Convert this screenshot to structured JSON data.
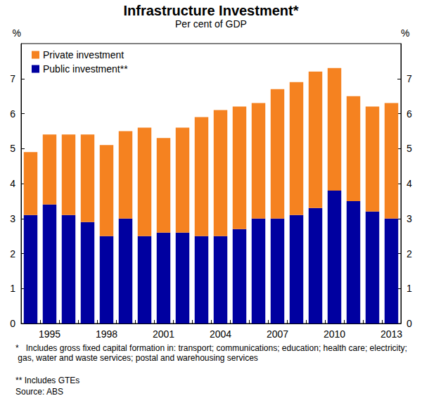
{
  "chart_data": {
    "type": "bar",
    "title": "Infrastructure Investment*",
    "subtitle": "Per cent of GDP",
    "ylabel": "%",
    "y2label": "%",
    "categories": [
      null,
      "1995",
      null,
      null,
      "1998",
      null,
      null,
      "2001",
      null,
      null,
      "2004",
      null,
      null,
      "2007",
      null,
      null,
      "2010",
      null,
      null,
      "2013"
    ],
    "series": [
      {
        "name": "Public investment**",
        "color": "#0000a0",
        "values": [
          3.1,
          3.4,
          3.1,
          2.9,
          2.5,
          3.0,
          2.5,
          2.6,
          2.6,
          2.5,
          2.5,
          2.7,
          3.0,
          3.0,
          3.1,
          3.3,
          3.8,
          3.5,
          3.2,
          3.0
        ]
      },
      {
        "name": "Private investment",
        "color": "#f58220",
        "values": [
          1.8,
          2.0,
          2.3,
          2.5,
          2.6,
          2.5,
          3.1,
          2.7,
          3.0,
          3.4,
          3.6,
          3.5,
          3.3,
          3.7,
          3.8,
          3.9,
          3.5,
          3.0,
          3.0,
          3.3
        ]
      }
    ],
    "stacked": true,
    "ylim": [
      0,
      8
    ],
    "yticks": [
      0,
      1,
      2,
      3,
      4,
      5,
      6,
      7
    ],
    "y2lim": [
      0,
      8
    ],
    "y2ticks": [
      0,
      1,
      2,
      3,
      4,
      5,
      6,
      7
    ],
    "grid": false,
    "legend": "upper left",
    "notes": [
      "*   Includes gross fixed capital formation in: transport; communications; education; health care; electricity; gas, water and waste services; postal and warehousing services",
      "** Includes GTEs",
      "Source: ABS"
    ]
  }
}
